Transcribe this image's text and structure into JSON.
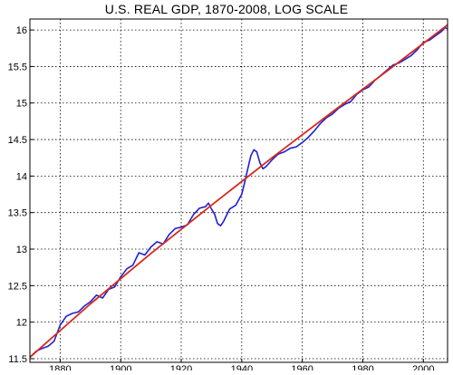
{
  "chart_data": {
    "type": "line",
    "title": "U.S. REAL GDP, 1870-2008, LOG SCALE",
    "xlabel": "",
    "ylabel": "",
    "xlim": [
      1870,
      2008
    ],
    "ylim": [
      11.45,
      16.15
    ],
    "x_ticks": [
      1880,
      1900,
      1920,
      1940,
      1960,
      1980,
      2000
    ],
    "y_ticks": [
      11.5,
      12,
      12.5,
      13,
      13.5,
      14,
      14.5,
      15,
      15.5,
      16
    ],
    "grid": true,
    "colors": {
      "actual": "#1f1fd6",
      "trend": "#d42a1a",
      "grid": "#000000"
    },
    "series": [
      {
        "key": "actual",
        "x": [
          1870,
          1872,
          1874,
          1876,
          1878,
          1880,
          1882,
          1884,
          1886,
          1888,
          1890,
          1892,
          1894,
          1896,
          1898,
          1900,
          1902,
          1904,
          1906,
          1908,
          1910,
          1912,
          1914,
          1916,
          1918,
          1920,
          1922,
          1924,
          1926,
          1928,
          1929,
          1930,
          1931,
          1932,
          1933,
          1934,
          1936,
          1938,
          1940,
          1941,
          1942,
          1943,
          1944,
          1945,
          1946,
          1947,
          1948,
          1950,
          1952,
          1954,
          1956,
          1958,
          1960,
          1962,
          1964,
          1966,
          1968,
          1970,
          1972,
          1974,
          1976,
          1978,
          1980,
          1982,
          1984,
          1986,
          1988,
          1990,
          1992,
          1994,
          1996,
          1998,
          2000,
          2002,
          2004,
          2006,
          2007,
          2008
        ],
        "y": [
          11.52,
          11.6,
          11.64,
          11.67,
          11.74,
          11.96,
          12.08,
          12.12,
          12.14,
          12.22,
          12.28,
          12.37,
          12.33,
          12.45,
          12.48,
          12.62,
          12.73,
          12.78,
          12.95,
          12.92,
          13.03,
          13.1,
          13.07,
          13.2,
          13.28,
          13.3,
          13.33,
          13.47,
          13.56,
          13.58,
          13.63,
          13.55,
          13.48,
          13.35,
          13.32,
          13.38,
          13.55,
          13.6,
          13.75,
          13.92,
          14.1,
          14.28,
          14.36,
          14.33,
          14.18,
          14.1,
          14.13,
          14.22,
          14.3,
          14.33,
          14.38,
          14.4,
          14.46,
          14.53,
          14.62,
          14.72,
          14.8,
          14.85,
          14.93,
          14.98,
          15.02,
          15.12,
          15.18,
          15.22,
          15.31,
          15.38,
          15.45,
          15.52,
          15.55,
          15.6,
          15.65,
          15.73,
          15.83,
          15.86,
          15.92,
          15.98,
          16.03,
          16.02
        ]
      },
      {
        "key": "trend",
        "x": [
          1870,
          1890,
          1910,
          1930,
          1950,
          1970,
          1990,
          2008
        ],
        "y": [
          11.52,
          12.25,
          12.94,
          13.6,
          14.25,
          14.88,
          15.5,
          16.07
        ]
      }
    ]
  }
}
